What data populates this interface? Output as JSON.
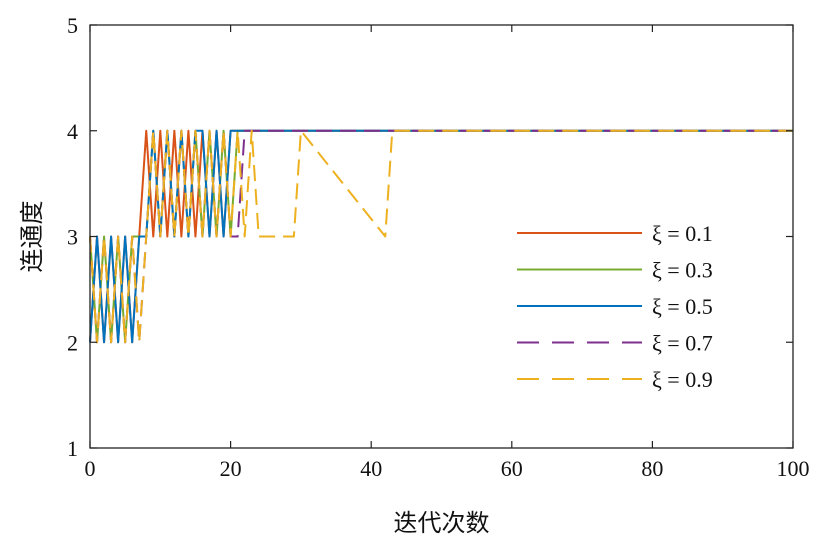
{
  "chart_data": {
    "type": "line",
    "xlabel": "迭代次数",
    "ylabel": "连通度",
    "xlim": [
      0,
      100
    ],
    "ylim": [
      1,
      5
    ],
    "xticks": [
      0,
      20,
      40,
      60,
      80,
      100
    ],
    "yticks": [
      1,
      2,
      3,
      4,
      5
    ],
    "grid": false,
    "legend_position": "right-middle",
    "series": [
      {
        "name": "ξ = 0.1",
        "color": "#d95319",
        "dash": "solid",
        "x": [
          0,
          1,
          2,
          3,
          4,
          5,
          6,
          7,
          8,
          9,
          10,
          11,
          12,
          13,
          14,
          15,
          16,
          17,
          18,
          19,
          20,
          100
        ],
        "y": [
          2,
          3,
          2,
          3,
          2,
          3,
          2,
          3,
          4,
          3,
          4,
          3,
          4,
          3,
          4,
          3,
          4,
          3,
          4,
          3,
          4,
          4
        ]
      },
      {
        "name": "ξ = 0.3",
        "color": "#77ac30",
        "dash": "solid",
        "x": [
          0,
          1,
          2,
          3,
          4,
          5,
          6,
          7,
          8,
          9,
          10,
          11,
          12,
          13,
          14,
          15,
          16,
          17,
          18,
          19,
          20,
          21,
          22,
          100
        ],
        "y": [
          3,
          2,
          3,
          2,
          3,
          2,
          3,
          3,
          3,
          4,
          3,
          4,
          3,
          4,
          3,
          4,
          3,
          4,
          3,
          4,
          3,
          4,
          4,
          4
        ]
      },
      {
        "name": "ξ = 0.5",
        "color": "#0072bd",
        "dash": "solid",
        "x": [
          0,
          1,
          2,
          3,
          4,
          5,
          6,
          7,
          8,
          9,
          10,
          11,
          12,
          13,
          14,
          15,
          16,
          17,
          18,
          19,
          20,
          100
        ],
        "y": [
          2,
          3,
          2,
          3,
          2,
          3,
          2,
          3,
          3,
          4,
          3,
          4,
          3,
          4,
          3,
          4,
          4,
          3,
          4,
          3,
          4,
          4
        ]
      },
      {
        "name": "ξ = 0.7",
        "color": "#7e2f8e",
        "dash": "dashed",
        "x": [
          0,
          1,
          2,
          3,
          4,
          5,
          6,
          7,
          8,
          9,
          10,
          11,
          12,
          13,
          14,
          15,
          16,
          17,
          18,
          19,
          20,
          21,
          22,
          100
        ],
        "y": [
          3,
          2,
          3,
          2,
          3,
          2,
          3,
          2,
          3,
          4,
          3,
          4,
          3,
          4,
          3,
          4,
          3,
          4,
          3,
          4,
          3,
          3,
          4,
          4
        ]
      },
      {
        "name": "ξ = 0.9",
        "color": "#edb120",
        "dash": "dashed",
        "x": [
          0,
          1,
          2,
          3,
          4,
          5,
          6,
          7,
          8,
          9,
          10,
          11,
          12,
          13,
          14,
          15,
          16,
          17,
          18,
          19,
          20,
          21,
          22,
          23,
          24,
          28,
          29,
          30,
          42,
          43,
          100
        ],
        "y": [
          3,
          2,
          3,
          2,
          3,
          2,
          3,
          2,
          3,
          4,
          3,
          4,
          3,
          4,
          3,
          4,
          3,
          4,
          3,
          4,
          3,
          4,
          3,
          4,
          3,
          3,
          3,
          4,
          3,
          4,
          4
        ]
      }
    ]
  }
}
